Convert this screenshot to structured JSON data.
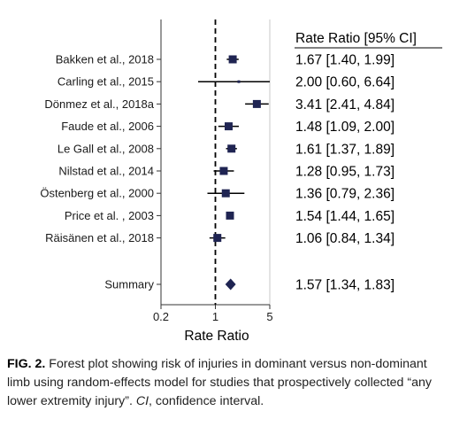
{
  "chart_data": {
    "type": "forest",
    "title": "",
    "xlabel": "Rate Ratio",
    "xscale": "log",
    "xlim": [
      0.2,
      5
    ],
    "xticks": [
      0.2,
      1,
      5
    ],
    "xtick_labels": [
      "0.2",
      "1",
      "5"
    ],
    "reference_line": 1,
    "column_header": "Rate Ratio [95% CI]",
    "marker_color": "#1f2452",
    "studies": [
      {
        "label": "Bakken et al., 2018",
        "rr": 1.67,
        "lo": 1.4,
        "hi": 1.99,
        "text": "1.67 [1.40, 1.99]"
      },
      {
        "label": "Carling et al., 2015",
        "rr": 2.0,
        "lo": 0.6,
        "hi": 6.64,
        "text": "2.00 [0.60, 6.64]"
      },
      {
        "label": "Dönmez et al., 2018a",
        "rr": 3.41,
        "lo": 2.41,
        "hi": 4.84,
        "text": "3.41 [2.41, 4.84]"
      },
      {
        "label": "Faude et al., 2006",
        "rr": 1.48,
        "lo": 1.09,
        "hi": 2.0,
        "text": "1.48 [1.09, 2.00]"
      },
      {
        "label": "Le Gall et al., 2008",
        "rr": 1.61,
        "lo": 1.37,
        "hi": 1.89,
        "text": "1.61 [1.37, 1.89]"
      },
      {
        "label": "Nilstad et al., 2014",
        "rr": 1.28,
        "lo": 0.95,
        "hi": 1.73,
        "text": "1.28 [0.95, 1.73]"
      },
      {
        "label": "Östenberg et al., 2000",
        "rr": 1.36,
        "lo": 0.79,
        "hi": 2.36,
        "text": "1.36 [0.79, 2.36]"
      },
      {
        "label": "Price et al. , 2003",
        "rr": 1.54,
        "lo": 1.44,
        "hi": 1.65,
        "text": "1.54 [1.44, 1.65]"
      },
      {
        "label": "Räisänen et al., 2018",
        "rr": 1.06,
        "lo": 0.84,
        "hi": 1.34,
        "text": "1.06 [0.84, 1.34]"
      }
    ],
    "summary": {
      "label": "Summary",
      "rr": 1.57,
      "lo": 1.34,
      "hi": 1.83,
      "text": "1.57 [1.34, 1.83]"
    }
  },
  "caption": {
    "fig_label": "FIG. 2.",
    "text_before_ci": " Forest plot showing risk of injuries in dominant versus non-dominant limb using random-effects model for studies that prospectively collected “any lower extremity injury”. ",
    "ci_abbrev": "CI",
    "text_after_ci": ", confidence interval."
  }
}
